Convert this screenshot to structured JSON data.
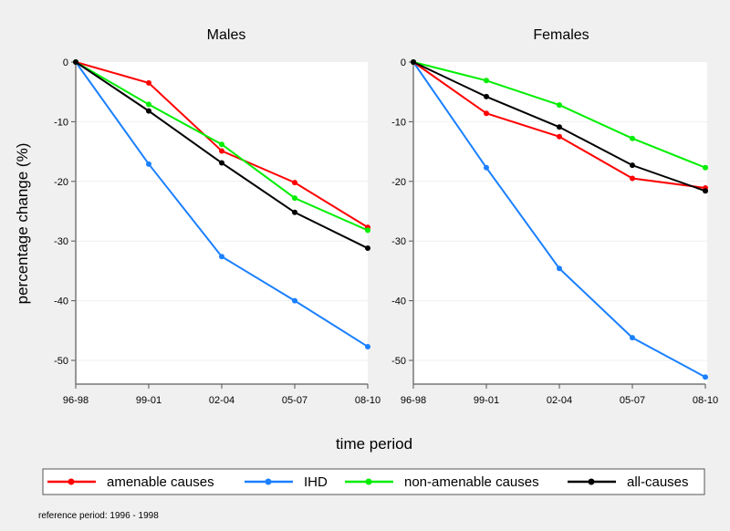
{
  "chart_data": {
    "type": "line",
    "xlabel": "time period",
    "ylabel": "percentage change (%)",
    "categories": [
      "96-98",
      "99-01",
      "02-04",
      "05-07",
      "08-10"
    ],
    "ylim": [
      -54,
      0
    ],
    "yticks": [
      0,
      -10,
      -20,
      -30,
      -40,
      -50
    ],
    "grid": true,
    "legend_position": "bottom",
    "panels": [
      {
        "title": "Males",
        "series": [
          {
            "name": "amenable causes",
            "color": "#ff0000",
            "values": [
              0,
              -3.5,
              -14.9,
              -20.2,
              -27.7
            ]
          },
          {
            "name": "IHD",
            "color": "#1a80ff",
            "values": [
              0,
              -17.1,
              -32.6,
              -40.0,
              -47.7
            ]
          },
          {
            "name": "non-amenable causes",
            "color": "#00ee00",
            "values": [
              0,
              -7.1,
              -13.8,
              -22.8,
              -28.2
            ]
          },
          {
            "name": "all-causes",
            "color": "#000000",
            "values": [
              0,
              -8.2,
              -16.9,
              -25.2,
              -31.2
            ]
          }
        ]
      },
      {
        "title": "Females",
        "series": [
          {
            "name": "amenable causes",
            "color": "#ff0000",
            "values": [
              0,
              -8.6,
              -12.5,
              -19.5,
              -21.1
            ]
          },
          {
            "name": "IHD",
            "color": "#1a80ff",
            "values": [
              0,
              -17.7,
              -34.6,
              -46.2,
              -52.8
            ]
          },
          {
            "name": "non-amenable causes",
            "color": "#00ee00",
            "values": [
              0,
              -3.1,
              -7.2,
              -12.8,
              -17.7
            ]
          },
          {
            "name": "all-causes",
            "color": "#000000",
            "values": [
              0,
              -5.8,
              -10.9,
              -17.3,
              -21.6
            ]
          }
        ]
      }
    ],
    "legend": [
      "amenable causes",
      "IHD",
      "non-amenable causes",
      "all-causes"
    ],
    "note": "reference period: 1996 - 1998"
  }
}
